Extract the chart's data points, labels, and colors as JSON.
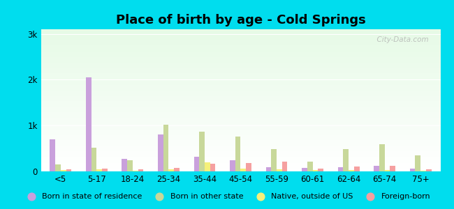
{
  "title": "Place of birth by age - Cold Springs",
  "background_outer": "#00ddee",
  "categories": [
    "<5",
    "5-17",
    "18-24",
    "25-34",
    "35-44",
    "45-54",
    "55-59",
    "60-61",
    "62-64",
    "65-74",
    "75+"
  ],
  "series": {
    "Born in state of residence": {
      "color": "#c9a0dc",
      "values": [
        700,
        2050,
        270,
        800,
        320,
        250,
        90,
        80,
        90,
        120,
        60
      ]
    },
    "Born in other state": {
      "color": "#c8d89a",
      "values": [
        150,
        520,
        250,
        1020,
        870,
        760,
        490,
        210,
        490,
        600,
        350
      ]
    },
    "Native, outside of US": {
      "color": "#f5f07a",
      "values": [
        30,
        40,
        20,
        40,
        200,
        60,
        40,
        30,
        30,
        30,
        20
      ]
    },
    "Foreign-born": {
      "color": "#f5a0a0",
      "values": [
        50,
        60,
        40,
        70,
        160,
        180,
        220,
        60,
        100,
        120,
        50
      ]
    }
  },
  "ylim": [
    0,
    3100
  ],
  "yticks": [
    0,
    1000,
    2000,
    3000
  ],
  "ytick_labels": [
    "0",
    "1k",
    "2k",
    "3k"
  ],
  "bar_width": 0.15,
  "title_fontsize": 13,
  "legend_fontsize": 8,
  "axis_fontsize": 8.5,
  "watermark": "  City-Data.com"
}
